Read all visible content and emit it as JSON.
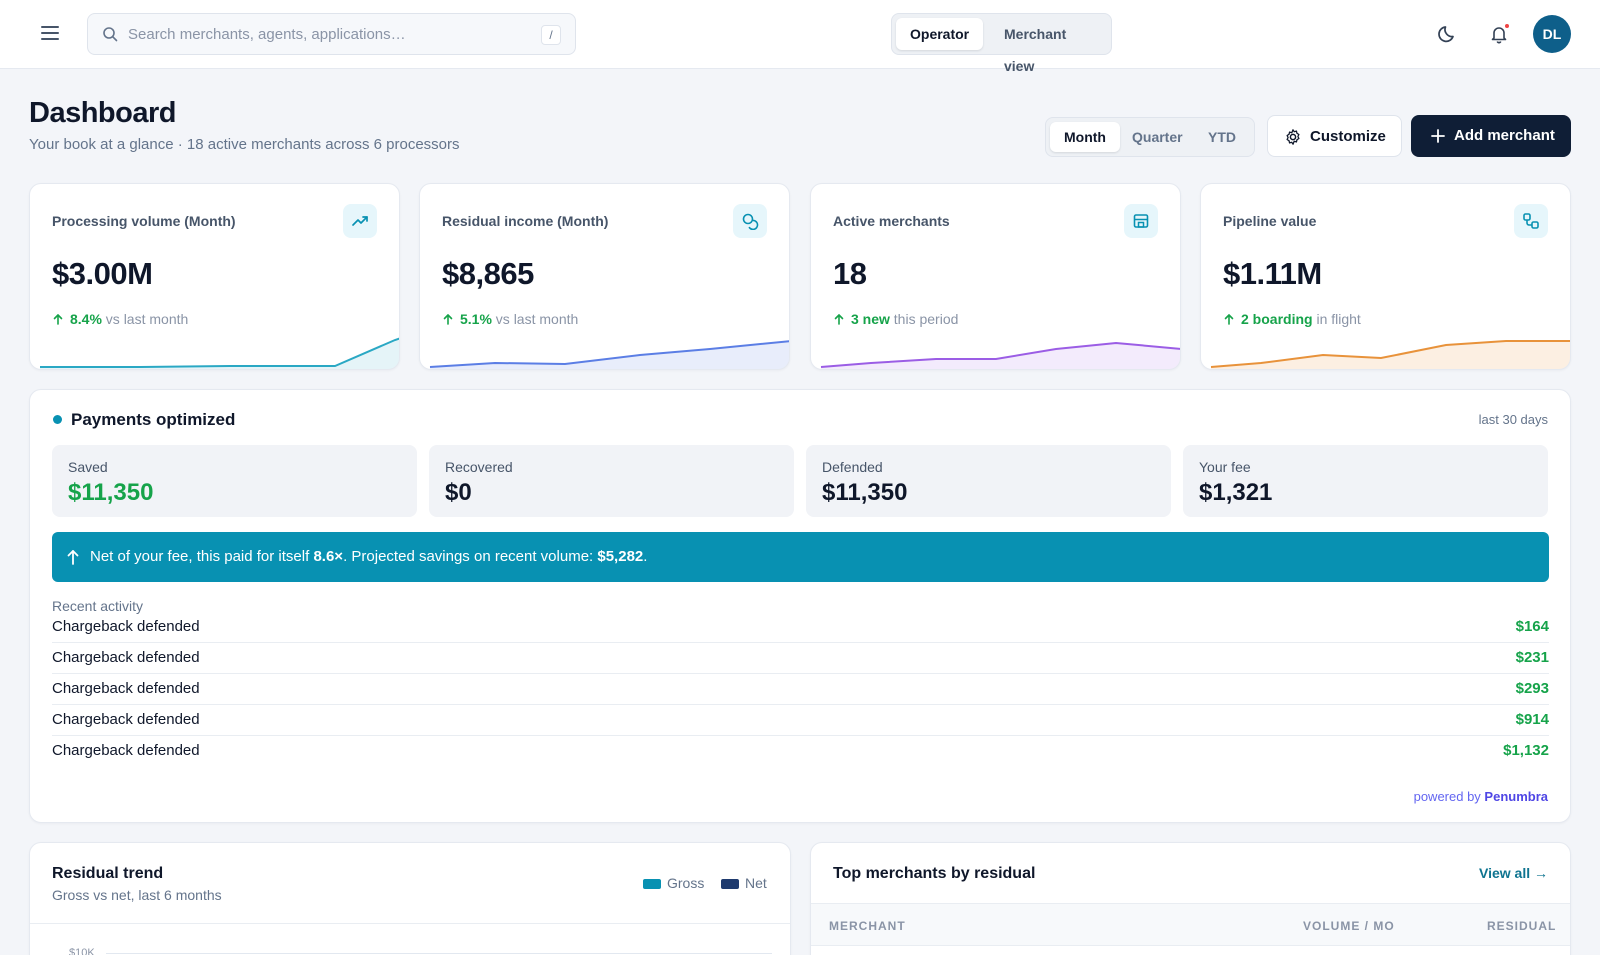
{
  "topbar": {
    "search_placeholder": "Search merchants, agents, applications…",
    "search_shortcut": "/",
    "view_options": [
      "Operator",
      "Merchant view"
    ],
    "active_view": "Operator",
    "user_initials": "DL"
  },
  "header": {
    "title": "Dashboard",
    "subtitle": "Your book at a glance · 18 active merchants across 6 processors",
    "periods": [
      "Month",
      "Quarter",
      "YTD"
    ],
    "active_period": "Month",
    "customize_label": "Customize",
    "add_merchant_label": "Add merchant"
  },
  "stats": [
    {
      "label": "Processing volume (Month)",
      "value": "$3.00M",
      "delta_strong": "8.4%",
      "delta_rest": " vs last month",
      "icon": "trending-up-icon",
      "color": "#2aa8c4"
    },
    {
      "label": "Residual income (Month)",
      "value": "$8,865",
      "delta_strong": "5.1%",
      "delta_rest": " vs last month",
      "icon": "coins-icon",
      "color": "#5b7ee5"
    },
    {
      "label": "Active merchants",
      "value": "18",
      "delta_strong": "3 new",
      "delta_rest": " this period",
      "icon": "store-icon",
      "color": "#9b5de5"
    },
    {
      "label": "Pipeline value",
      "value": "$1.11M",
      "delta_strong": "2 boarding",
      "delta_rest": " in flight",
      "icon": "workflow-icon",
      "color": "#e8923a"
    }
  ],
  "payments": {
    "title": "Payments optimized",
    "range": "last 30 days",
    "metrics": [
      {
        "label": "Saved",
        "value": "$11,350"
      },
      {
        "label": "Recovered",
        "value": "$0"
      },
      {
        "label": "Defended",
        "value": "$11,350"
      },
      {
        "label": "Your fee",
        "value": "$1,321"
      }
    ],
    "banner": {
      "pre": "Net of your fee, this paid for itself ",
      "multiple": "8.6×",
      "mid": ". Projected savings on recent volume: ",
      "projected": "$5,282",
      "post": "."
    },
    "recent_label": "Recent activity",
    "activity": [
      {
        "label": "Chargeback defended",
        "amount": "$164"
      },
      {
        "label": "Chargeback defended",
        "amount": "$231"
      },
      {
        "label": "Chargeback defended",
        "amount": "$293"
      },
      {
        "label": "Chargeback defended",
        "amount": "$914"
      },
      {
        "label": "Chargeback defended",
        "amount": "$1,132"
      }
    ],
    "powered_by": "powered by ",
    "powered_brand": "Penumbra"
  },
  "residual_trend": {
    "title": "Residual trend",
    "subtitle": "Gross vs net, last 6 months",
    "legend": [
      {
        "name": "Gross",
        "color": "#0891b2"
      },
      {
        "name": "Net",
        "color": "#1e3a6e"
      }
    ],
    "y_tick_top": "$10K"
  },
  "top_merchants": {
    "title": "Top merchants by residual",
    "view_all": "View all →",
    "columns": [
      "MERCHANT",
      "VOLUME / MO",
      "RESIDUAL"
    ]
  }
}
